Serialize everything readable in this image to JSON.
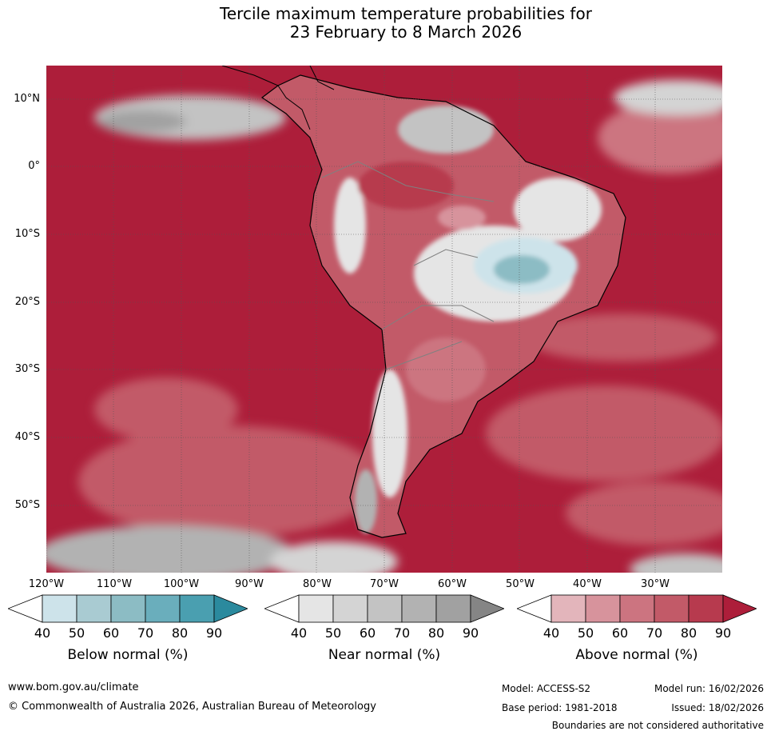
{
  "title": {
    "line1": "Tercile maximum temperature probabilities for",
    "line2": "23 February to 8 March 2026"
  },
  "map": {
    "region": "South America",
    "latitude_labels": [
      "10°N",
      "0°",
      "10°S",
      "20°S",
      "30°S",
      "40°S",
      "50°S"
    ],
    "longitude_labels": [
      "120°W",
      "110°W",
      "100°W",
      "90°W",
      "80°W",
      "70°W",
      "60°W",
      "50°W",
      "40°W",
      "30°W"
    ]
  },
  "colorbars": [
    {
      "name": "below-normal",
      "label": "Below normal (%)",
      "ticks": [
        "40",
        "50",
        "60",
        "70",
        "80",
        "90"
      ],
      "colors": [
        "#ffffff",
        "#cde3ea",
        "#a9cbd2",
        "#8cbcc4",
        "#6aaebc",
        "#4a9fb0",
        "#2b8a9e"
      ]
    },
    {
      "name": "near-normal",
      "label": "Near normal (%)",
      "ticks": [
        "40",
        "50",
        "60",
        "70",
        "80",
        "90"
      ],
      "colors": [
        "#ffffff",
        "#e5e5e5",
        "#d4d4d4",
        "#c3c3c3",
        "#b2b2b2",
        "#a1a1a1",
        "#858585"
      ]
    },
    {
      "name": "above-normal",
      "label": "Above normal (%)",
      "ticks": [
        "40",
        "50",
        "60",
        "70",
        "80",
        "90"
      ],
      "colors": [
        "#ffffff",
        "#e3b5bb",
        "#d7939c",
        "#cc7480",
        "#c25a68",
        "#b73a4e",
        "#ad1e3a"
      ]
    }
  ],
  "footer": {
    "website": "www.bom.gov.au/climate",
    "copyright": "© Commonwealth of Australia 2026, Australian Bureau of Meteorology",
    "model": "Model: ACCESS-S2",
    "base_period": "Base period: 1981-2018",
    "model_run": "Model run: 16/02/2026",
    "issued": "Issued: 18/02/2026",
    "disclaimer": "Boundaries are not considered authoritative"
  }
}
